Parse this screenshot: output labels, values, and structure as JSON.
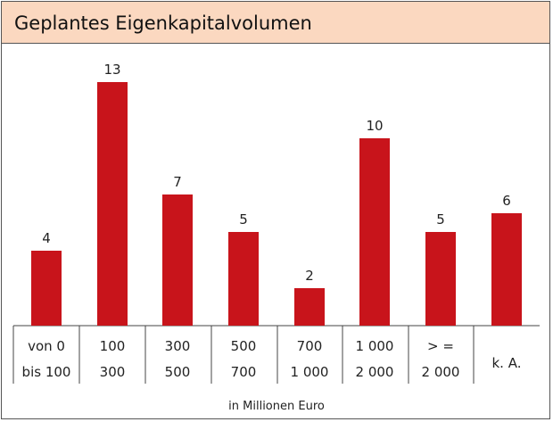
{
  "title": "Geplantes Eigenkapitalvolumen",
  "chart_data": {
    "type": "bar",
    "title": "Geplantes Eigenkapitalvolumen",
    "xlabel": "in Millionen Euro",
    "ylabel": "",
    "ylim": [
      0,
      13
    ],
    "grid": false,
    "bar_color": "#c8141b",
    "categories": [
      [
        "von 0",
        "bis 100"
      ],
      [
        "100",
        "300"
      ],
      [
        "300",
        "500"
      ],
      [
        "500",
        "700"
      ],
      [
        "700",
        "1 000"
      ],
      [
        "1 000",
        "2 000"
      ],
      [
        "> =",
        "2 000"
      ],
      [
        "k. A."
      ]
    ],
    "values": [
      4,
      13,
      7,
      5,
      2,
      10,
      5,
      6
    ]
  }
}
